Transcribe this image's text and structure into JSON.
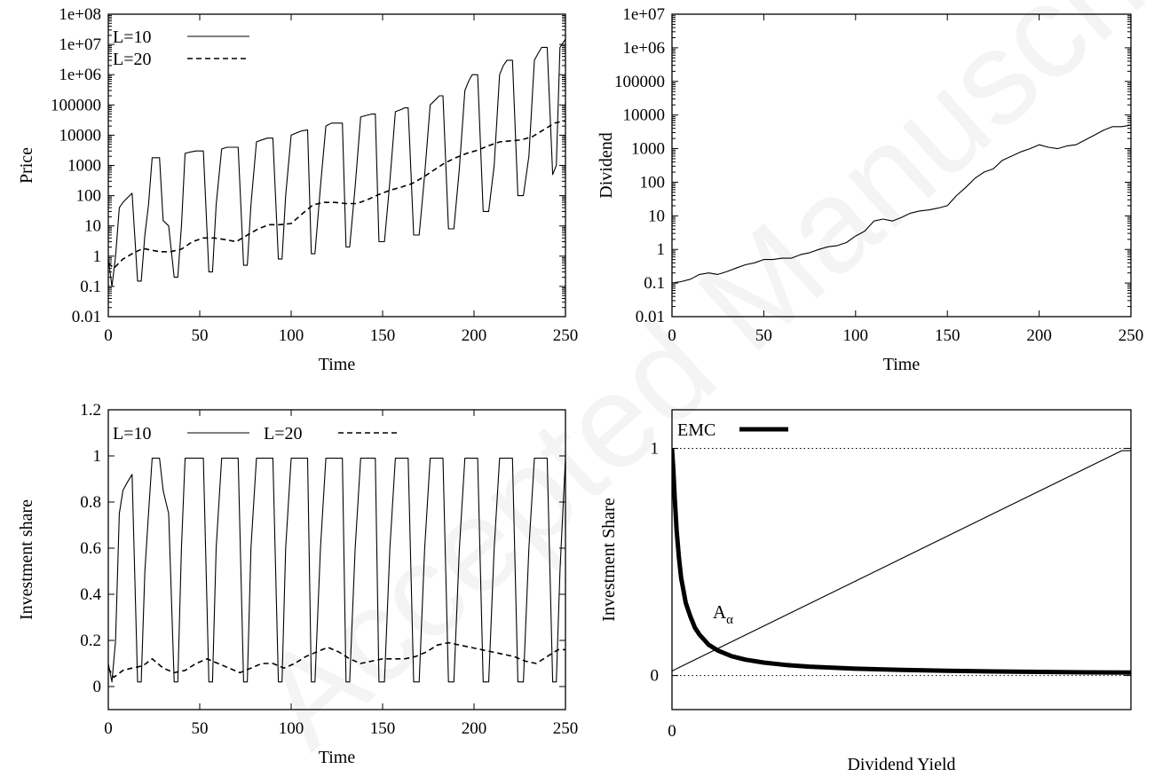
{
  "chart_data": [
    {
      "type": "line",
      "ylabel": "Price",
      "xlabel": "Time",
      "xlim": [
        0,
        250
      ],
      "ylim": [
        0.01,
        100000000
      ],
      "yscale": "log",
      "x_ticks": [
        "0",
        "50",
        "100",
        "150",
        "200",
        "250"
      ],
      "y_ticks": [
        "0.01",
        "0.1",
        "1",
        "10",
        "100",
        "1000",
        "10000",
        "100000",
        "1e+06",
        "1e+07",
        "1e+08"
      ],
      "legend_position": "top-left",
      "series": [
        {
          "name": "L=10",
          "style": "solid",
          "x": [
            0,
            2,
            4,
            6,
            8,
            10,
            13,
            16,
            18,
            20,
            22,
            24,
            26,
            28,
            30,
            33,
            36,
            38,
            40,
            42,
            45,
            48,
            52,
            55,
            57,
            59,
            62,
            65,
            68,
            71,
            74,
            76,
            78,
            81,
            84,
            87,
            90,
            93,
            95,
            97,
            100,
            103,
            106,
            109,
            111,
            113,
            116,
            119,
            122,
            125,
            128,
            130,
            132,
            135,
            138,
            141,
            144,
            146,
            148,
            151,
            154,
            157,
            160,
            162,
            164,
            167,
            170,
            173,
            176,
            179,
            181,
            183,
            186,
            189,
            192,
            195,
            197,
            199,
            202,
            205,
            208,
            211,
            214,
            216,
            218,
            221,
            224,
            227,
            230,
            233,
            235,
            237,
            240,
            243,
            245,
            247,
            250
          ],
          "y": [
            0.8,
            0.1,
            1,
            40,
            60,
            80,
            120,
            0.15,
            0.15,
            5,
            50,
            1800,
            1800,
            1800,
            15,
            10,
            0.2,
            0.2,
            10,
            2500,
            2800,
            3000,
            3000,
            0.3,
            0.3,
            50,
            3500,
            4000,
            4000,
            4000,
            0.5,
            0.5,
            50,
            6000,
            7000,
            8000,
            8000,
            0.8,
            0.8,
            100,
            10000,
            12000,
            14000,
            15000,
            1.2,
            1.2,
            200,
            20000,
            25000,
            25000,
            25000,
            2,
            2,
            200,
            40000,
            45000,
            50000,
            50000,
            3,
            3,
            300,
            60000,
            70000,
            80000,
            80000,
            5,
            5,
            500,
            100000,
            150000,
            200000,
            200000,
            8,
            8,
            800,
            300000,
            600000,
            1000000,
            1000000,
            30,
            30,
            1000,
            1000000,
            2000000,
            3000000,
            3000000,
            100,
            100,
            2000,
            3000000,
            5000000,
            8000000,
            8000000,
            500,
            1000,
            8000000,
            15000000
          ]
        },
        {
          "name": "L=20",
          "style": "dashed",
          "x": [
            0,
            3,
            8,
            13,
            19,
            23,
            28,
            34,
            40,
            46,
            52,
            58,
            64,
            70,
            76,
            82,
            88,
            94,
            100,
            106,
            112,
            118,
            124,
            130,
            136,
            142,
            148,
            154,
            160,
            166,
            172,
            178,
            184,
            190,
            196,
            202,
            208,
            214,
            220,
            226,
            232,
            238,
            244,
            250
          ],
          "y": [
            0.6,
            0.4,
            0.8,
            1.2,
            1.8,
            1.6,
            1.4,
            1.4,
            1.7,
            3,
            4,
            4,
            3.5,
            3,
            5,
            8,
            11,
            11,
            12,
            25,
            50,
            60,
            60,
            55,
            55,
            75,
            110,
            150,
            190,
            250,
            400,
            700,
            1200,
            1800,
            2500,
            3200,
            4500,
            6000,
            6500,
            7000,
            9000,
            15000,
            25000,
            30000
          ]
        }
      ]
    },
    {
      "type": "line",
      "ylabel": "Dividend",
      "xlabel": "Time",
      "xlim": [
        0,
        250
      ],
      "ylim": [
        0.01,
        10000000
      ],
      "yscale": "log",
      "x_ticks": [
        "0",
        "50",
        "100",
        "150",
        "200",
        "250"
      ],
      "y_ticks": [
        "0.01",
        "0.1",
        "1",
        "10",
        "100",
        "1000",
        "10000",
        "100000",
        "1e+06",
        "1e+07"
      ],
      "series": [
        {
          "style": "solid",
          "x": [
            0,
            5,
            10,
            15,
            20,
            25,
            30,
            35,
            40,
            45,
            50,
            55,
            60,
            65,
            70,
            75,
            80,
            85,
            90,
            95,
            100,
            105,
            110,
            115,
            120,
            125,
            130,
            135,
            140,
            145,
            150,
            155,
            160,
            165,
            170,
            175,
            180,
            185,
            190,
            195,
            200,
            205,
            210,
            215,
            220,
            225,
            230,
            235,
            240,
            245,
            250
          ],
          "y": [
            0.1,
            0.11,
            0.13,
            0.18,
            0.2,
            0.18,
            0.22,
            0.28,
            0.35,
            0.4,
            0.5,
            0.5,
            0.55,
            0.55,
            0.7,
            0.8,
            1,
            1.2,
            1.3,
            1.6,
            2.5,
            3.5,
            7,
            8,
            7,
            9,
            12,
            14,
            15,
            17,
            20,
            40,
            70,
            130,
            200,
            250,
            450,
            600,
            800,
            1000,
            1300,
            1100,
            1000,
            1200,
            1300,
            1800,
            2500,
            3500,
            4500,
            4500,
            5000
          ]
        }
      ]
    },
    {
      "type": "line",
      "ylabel": "Investment share",
      "xlabel": "Time",
      "xlim": [
        0,
        250
      ],
      "ylim": [
        -0.1,
        1.2
      ],
      "x_ticks": [
        "0",
        "50",
        "100",
        "150",
        "200",
        "250"
      ],
      "y_ticks": [
        "0",
        "0.2",
        "0.4",
        "0.6",
        "0.8",
        "1",
        "1.2"
      ],
      "legend_position": "top-left",
      "series": [
        {
          "name": "L=10",
          "style": "solid",
          "x": [
            0,
            2,
            4,
            6,
            8,
            10,
            13,
            16,
            18,
            20,
            22,
            24,
            26,
            28,
            30,
            33,
            36,
            38,
            40,
            42,
            45,
            48,
            52,
            55,
            57,
            59,
            62,
            65,
            68,
            71,
            74,
            76,
            78,
            81,
            84,
            87,
            90,
            93,
            95,
            97,
            100,
            103,
            106,
            109,
            111,
            113,
            116,
            119,
            122,
            125,
            128,
            130,
            132,
            135,
            138,
            141,
            144,
            146,
            148,
            151,
            154,
            157,
            160,
            162,
            164,
            167,
            170,
            173,
            176,
            179,
            181,
            183,
            186,
            189,
            192,
            195,
            197,
            199,
            202,
            205,
            208,
            211,
            214,
            216,
            218,
            221,
            224,
            227,
            230,
            233,
            235,
            237,
            240,
            243,
            245,
            247,
            250
          ],
          "y": [
            0.1,
            0.02,
            0.2,
            0.75,
            0.85,
            0.88,
            0.92,
            0.02,
            0.02,
            0.5,
            0.75,
            0.99,
            0.99,
            0.99,
            0.85,
            0.75,
            0.02,
            0.02,
            0.6,
            0.99,
            0.99,
            0.99,
            0.99,
            0.02,
            0.02,
            0.6,
            0.99,
            0.99,
            0.99,
            0.99,
            0.02,
            0.02,
            0.6,
            0.99,
            0.99,
            0.99,
            0.99,
            0.02,
            0.02,
            0.6,
            0.99,
            0.99,
            0.99,
            0.99,
            0.02,
            0.02,
            0.6,
            0.99,
            0.99,
            0.99,
            0.99,
            0.02,
            0.02,
            0.6,
            0.99,
            0.99,
            0.99,
            0.99,
            0.02,
            0.02,
            0.6,
            0.99,
            0.99,
            0.99,
            0.99,
            0.02,
            0.02,
            0.6,
            0.99,
            0.99,
            0.99,
            0.99,
            0.02,
            0.02,
            0.6,
            0.99,
            0.99,
            0.99,
            0.99,
            0.02,
            0.02,
            0.6,
            0.99,
            0.99,
            0.99,
            0.99,
            0.02,
            0.02,
            0.6,
            0.99,
            0.99,
            0.99,
            0.99,
            0.02,
            0.02,
            0.5,
            0.99
          ]
        },
        {
          "name": "L=20",
          "style": "dashed",
          "x": [
            0,
            3,
            8,
            13,
            19,
            24,
            30,
            36,
            42,
            48,
            54,
            60,
            66,
            72,
            78,
            84,
            90,
            96,
            102,
            108,
            114,
            120,
            126,
            132,
            138,
            144,
            150,
            156,
            162,
            168,
            174,
            180,
            186,
            192,
            198,
            204,
            210,
            216,
            222,
            228,
            234,
            240,
            246,
            250
          ],
          "y": [
            0.08,
            0.04,
            0.07,
            0.08,
            0.09,
            0.12,
            0.08,
            0.06,
            0.07,
            0.1,
            0.12,
            0.1,
            0.08,
            0.06,
            0.08,
            0.1,
            0.1,
            0.08,
            0.1,
            0.13,
            0.15,
            0.17,
            0.15,
            0.12,
            0.1,
            0.11,
            0.12,
            0.12,
            0.12,
            0.13,
            0.15,
            0.18,
            0.19,
            0.18,
            0.17,
            0.16,
            0.15,
            0.14,
            0.13,
            0.11,
            0.1,
            0.13,
            0.16,
            0.16
          ]
        }
      ]
    },
    {
      "type": "line",
      "ylabel": "Investment Share",
      "xlabel": "Dividend Yield",
      "x_ticks": [
        "0"
      ],
      "y_ticks": [
        "0",
        "1"
      ],
      "ylim": [
        -0.15,
        1.17
      ],
      "xlim": [
        0,
        1
      ],
      "reference_lines_y": [
        0,
        1
      ],
      "annotation": {
        "text": "A",
        "subscript": "α"
      },
      "legend_position": "top-left",
      "series": [
        {
          "name": "EMC",
          "style": "thick",
          "x": [
            0,
            0.003,
            0.006,
            0.01,
            0.015,
            0.02,
            0.03,
            0.04,
            0.05,
            0.06,
            0.08,
            0.1,
            0.13,
            0.16,
            0.2,
            0.25,
            0.3,
            0.4,
            0.5,
            0.6,
            0.7,
            0.8,
            0.9,
            1
          ],
          "y": [
            1,
            0.9,
            0.78,
            0.64,
            0.52,
            0.43,
            0.32,
            0.26,
            0.21,
            0.18,
            0.135,
            0.11,
            0.085,
            0.07,
            0.057,
            0.046,
            0.039,
            0.03,
            0.025,
            0.021,
            0.018,
            0.016,
            0.014,
            0.013
          ]
        },
        {
          "style": "thin",
          "x": [
            0,
            0.98,
            1
          ],
          "y": [
            0.02,
            0.99,
            0.99
          ]
        }
      ]
    }
  ],
  "watermark": "Accepted Manuscript"
}
